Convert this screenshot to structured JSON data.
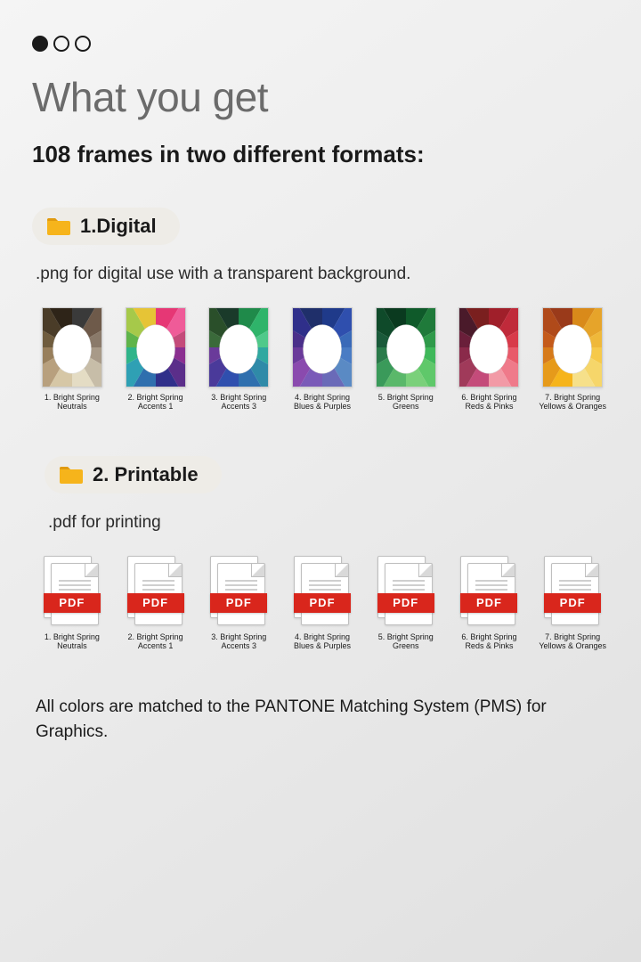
{
  "pager": {
    "total": 3,
    "active_index": 0,
    "dot_fill": "#1a1a1a",
    "dot_border": "#1a1a1a"
  },
  "title": "What you get",
  "subtitle": "108 frames in two different formats:",
  "folder_color": "#f6b41b",
  "pdf_band_color": "#d9261c",
  "pdf_band_label": "PDF",
  "section1": {
    "label": "1.Digital",
    "description": ".png for digital use with a transparent background.",
    "pill_bg": "#eeece7"
  },
  "section2": {
    "label": "2. Printable",
    "description": ".pdf for printing",
    "pill_bg": "#eeece7"
  },
  "frames": [
    {
      "caption": "1. Bright Spring Neutrals",
      "colors": [
        "#3a3a3a",
        "#6e5a4a",
        "#8a7a6a",
        "#a89a88",
        "#c7bda8",
        "#e4dcc4",
        "#d6c7a6",
        "#b8a07e",
        "#987f5c",
        "#6f5c3e",
        "#4a3c28",
        "#2e2418"
      ]
    },
    {
      "caption": "2. Bright Spring Accents 1",
      "colors": [
        "#e63775",
        "#ef5b98",
        "#c44b7a",
        "#8b2f90",
        "#5b2e8a",
        "#2f2f8a",
        "#2f6fae",
        "#2fa0b4",
        "#2fb48a",
        "#5fb44a",
        "#a6c94a",
        "#e6c436"
      ]
    },
    {
      "caption": "3. Bright Spring Accents 3",
      "colors": [
        "#1f8a4a",
        "#2fb46a",
        "#4fc98a",
        "#2fa8a0",
        "#2f8aa8",
        "#2f6fae",
        "#2f4fae",
        "#4a3a9a",
        "#6a3a9a",
        "#3a6a3a",
        "#2a4f2a",
        "#1a3a2a"
      ]
    },
    {
      "caption": "4. Bright Spring Blues & Purples",
      "colors": [
        "#1f3a8a",
        "#2f4fae",
        "#3a6ab8",
        "#4a7cc4",
        "#5a8ac4",
        "#6a6ab8",
        "#7a5ab8",
        "#8a4aae",
        "#6a3a9a",
        "#4a2f8a",
        "#2f2f8a",
        "#1f2f6a"
      ]
    },
    {
      "caption": "5. Bright Spring Greens",
      "colors": [
        "#0f5a2a",
        "#1f7a3a",
        "#2f9a4a",
        "#3fb85a",
        "#5fc86a",
        "#7ad07a",
        "#5ab86a",
        "#3a9a5a",
        "#2a7a4a",
        "#1a5a3a",
        "#0f4a2a",
        "#0a3a1f"
      ]
    },
    {
      "caption": "6. Bright Spring Reds & Pinks",
      "colors": [
        "#a01f2a",
        "#c02a3a",
        "#d83a4a",
        "#e85a6a",
        "#ef7a8a",
        "#f29aa6",
        "#c44b7a",
        "#a03a5a",
        "#8a2a4a",
        "#6a1f3a",
        "#4a1a2a",
        "#7a1f1f"
      ]
    },
    {
      "caption": "7. Bright Spring Yellows & Oranges",
      "colors": [
        "#d98a1a",
        "#e6a42a",
        "#efb83a",
        "#f6c94a",
        "#f6d66a",
        "#f6e08a",
        "#f6b41b",
        "#e69a1a",
        "#d67a1a",
        "#c45a1a",
        "#b04a1a",
        "#9a3a1a"
      ]
    }
  ],
  "footnote": "All colors are matched to the PANTONE Matching System (PMS) for Graphics.",
  "typography": {
    "title_pt": 46,
    "subtitle_pt": 26,
    "pill_pt": 22,
    "desc_pt": 19,
    "caption_pt": 9,
    "footnote_pt": 19
  },
  "background_gradient": [
    "#f5f5f5",
    "#ebebeb",
    "#e0e0e0"
  ]
}
